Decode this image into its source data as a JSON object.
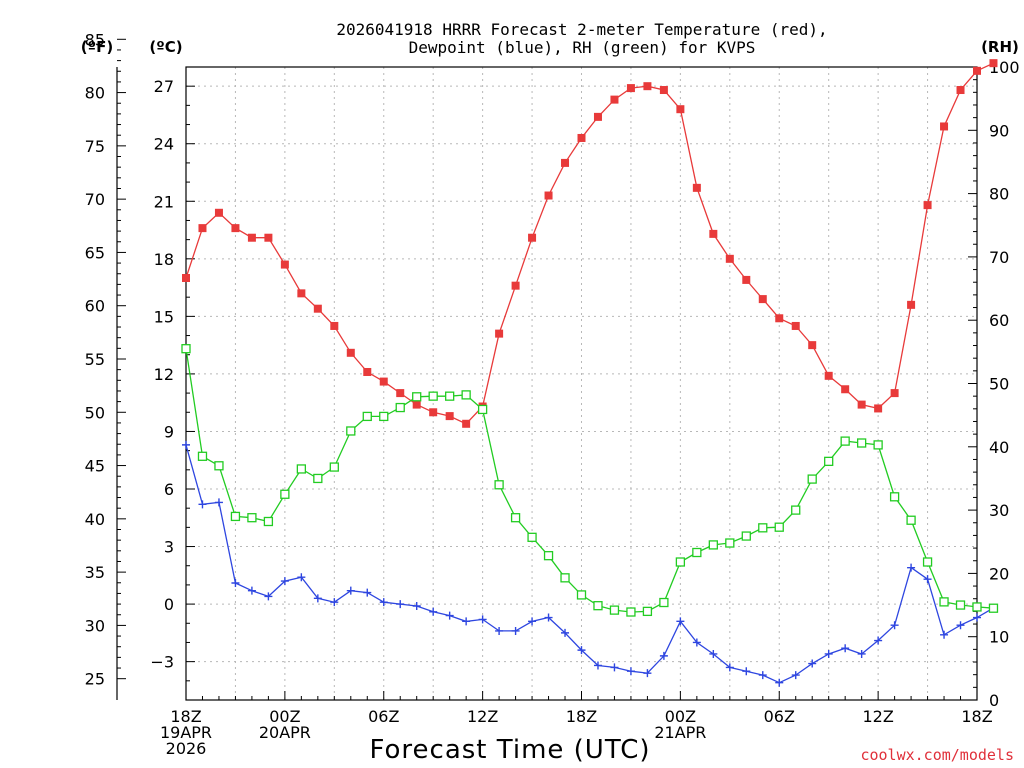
{
  "chart_data": {
    "type": "line",
    "title_line1": "2026041918 HRRR Forecast 2-meter Temperature (red),",
    "title_line2": "Dewpoint (blue), RH (green) for KVPS",
    "xlabel": "Forecast Time (UTC)",
    "credit": "coolwx.com/models",
    "unit_f": "(ºF)",
    "unit_c": "(ºC)",
    "unit_rh": "(RH)",
    "x_range_hours": [
      0,
      48
    ],
    "y_celsius_range": [
      -5,
      28
    ],
    "y_rh_range": [
      0,
      100
    ],
    "x_ticks": [
      {
        "h": 0,
        "lines": [
          "18Z",
          "19APR",
          "2026"
        ]
      },
      {
        "h": 6,
        "lines": [
          "00Z",
          "20APR"
        ]
      },
      {
        "h": 12,
        "lines": [
          "06Z"
        ]
      },
      {
        "h": 18,
        "lines": [
          "12Z"
        ]
      },
      {
        "h": 24,
        "lines": [
          "18Z"
        ]
      },
      {
        "h": 30,
        "lines": [
          "00Z",
          "21APR"
        ]
      },
      {
        "h": 36,
        "lines": [
          "06Z"
        ]
      },
      {
        "h": 42,
        "lines": [
          "12Z"
        ]
      },
      {
        "h": 48,
        "lines": [
          "18Z"
        ]
      }
    ],
    "y_ticks_f": [
      25,
      30,
      35,
      40,
      45,
      50,
      55,
      60,
      65,
      70,
      75,
      80,
      85
    ],
    "y_ticks_c": [
      -3,
      0,
      3,
      6,
      9,
      12,
      15,
      18,
      21,
      24,
      27
    ],
    "y_ticks_rh": [
      0,
      10,
      20,
      30,
      40,
      50,
      60,
      70,
      80,
      90,
      100
    ],
    "colors": {
      "temperature": "#e83a3a",
      "dewpoint": "#2e46e0",
      "rh": "#22cc22",
      "credit": "#e0303a"
    },
    "series": [
      {
        "name": "2-meter Temperature",
        "units": "C",
        "marker": "filled-square",
        "values": [
          17.0,
          19.6,
          20.4,
          19.6,
          19.1,
          19.1,
          17.7,
          16.2,
          15.4,
          14.5,
          13.1,
          12.1,
          11.6,
          11.0,
          10.4,
          10.0,
          9.8,
          9.4,
          10.3,
          14.1,
          16.6,
          19.1,
          21.3,
          23.0,
          24.3,
          25.4,
          26.3,
          26.9,
          27.0,
          26.8,
          25.8,
          21.7,
          19.3,
          18.0,
          16.9,
          15.9,
          14.9,
          14.5,
          13.5,
          11.9,
          11.2,
          10.4,
          10.2,
          11.0,
          15.6,
          20.8,
          24.9,
          26.8,
          27.8,
          28.2
        ]
      },
      {
        "name": "Dewpoint",
        "units": "C",
        "marker": "plus",
        "values": [
          8.3,
          5.2,
          5.3,
          1.1,
          0.7,
          0.4,
          1.2,
          1.4,
          0.3,
          0.1,
          0.7,
          0.6,
          0.1,
          0.0,
          -0.1,
          -0.4,
          -0.6,
          -0.9,
          -0.8,
          -1.4,
          -1.4,
          -0.9,
          -0.7,
          -1.5,
          -2.4,
          -3.2,
          -3.3,
          -3.5,
          -3.6,
          -2.7,
          -0.9,
          -2.0,
          -2.6,
          -3.3,
          -3.5,
          -3.7,
          -4.1,
          -3.7,
          -3.1,
          -2.6,
          -2.3,
          -2.6,
          -1.9,
          -1.1,
          1.9,
          1.3,
          -1.6,
          -1.1,
          -0.7,
          -0.2
        ]
      },
      {
        "name": "RH",
        "units": "%",
        "marker": "open-square",
        "values": [
          55.5,
          38.5,
          37.0,
          29.0,
          28.8,
          28.2,
          32.5,
          36.5,
          35.0,
          36.8,
          42.5,
          44.8,
          44.8,
          46.2,
          47.9,
          48.0,
          48.0,
          48.2,
          45.9,
          34.0,
          28.8,
          25.7,
          22.8,
          19.3,
          16.6,
          14.9,
          14.2,
          13.9,
          14.0,
          15.4,
          21.8,
          23.3,
          24.5,
          24.8,
          25.9,
          27.2,
          27.3,
          30.0,
          34.9,
          37.7,
          40.9,
          40.6,
          40.3,
          32.1,
          28.4,
          21.8,
          15.5,
          15.0,
          14.7,
          14.5
        ]
      }
    ]
  }
}
